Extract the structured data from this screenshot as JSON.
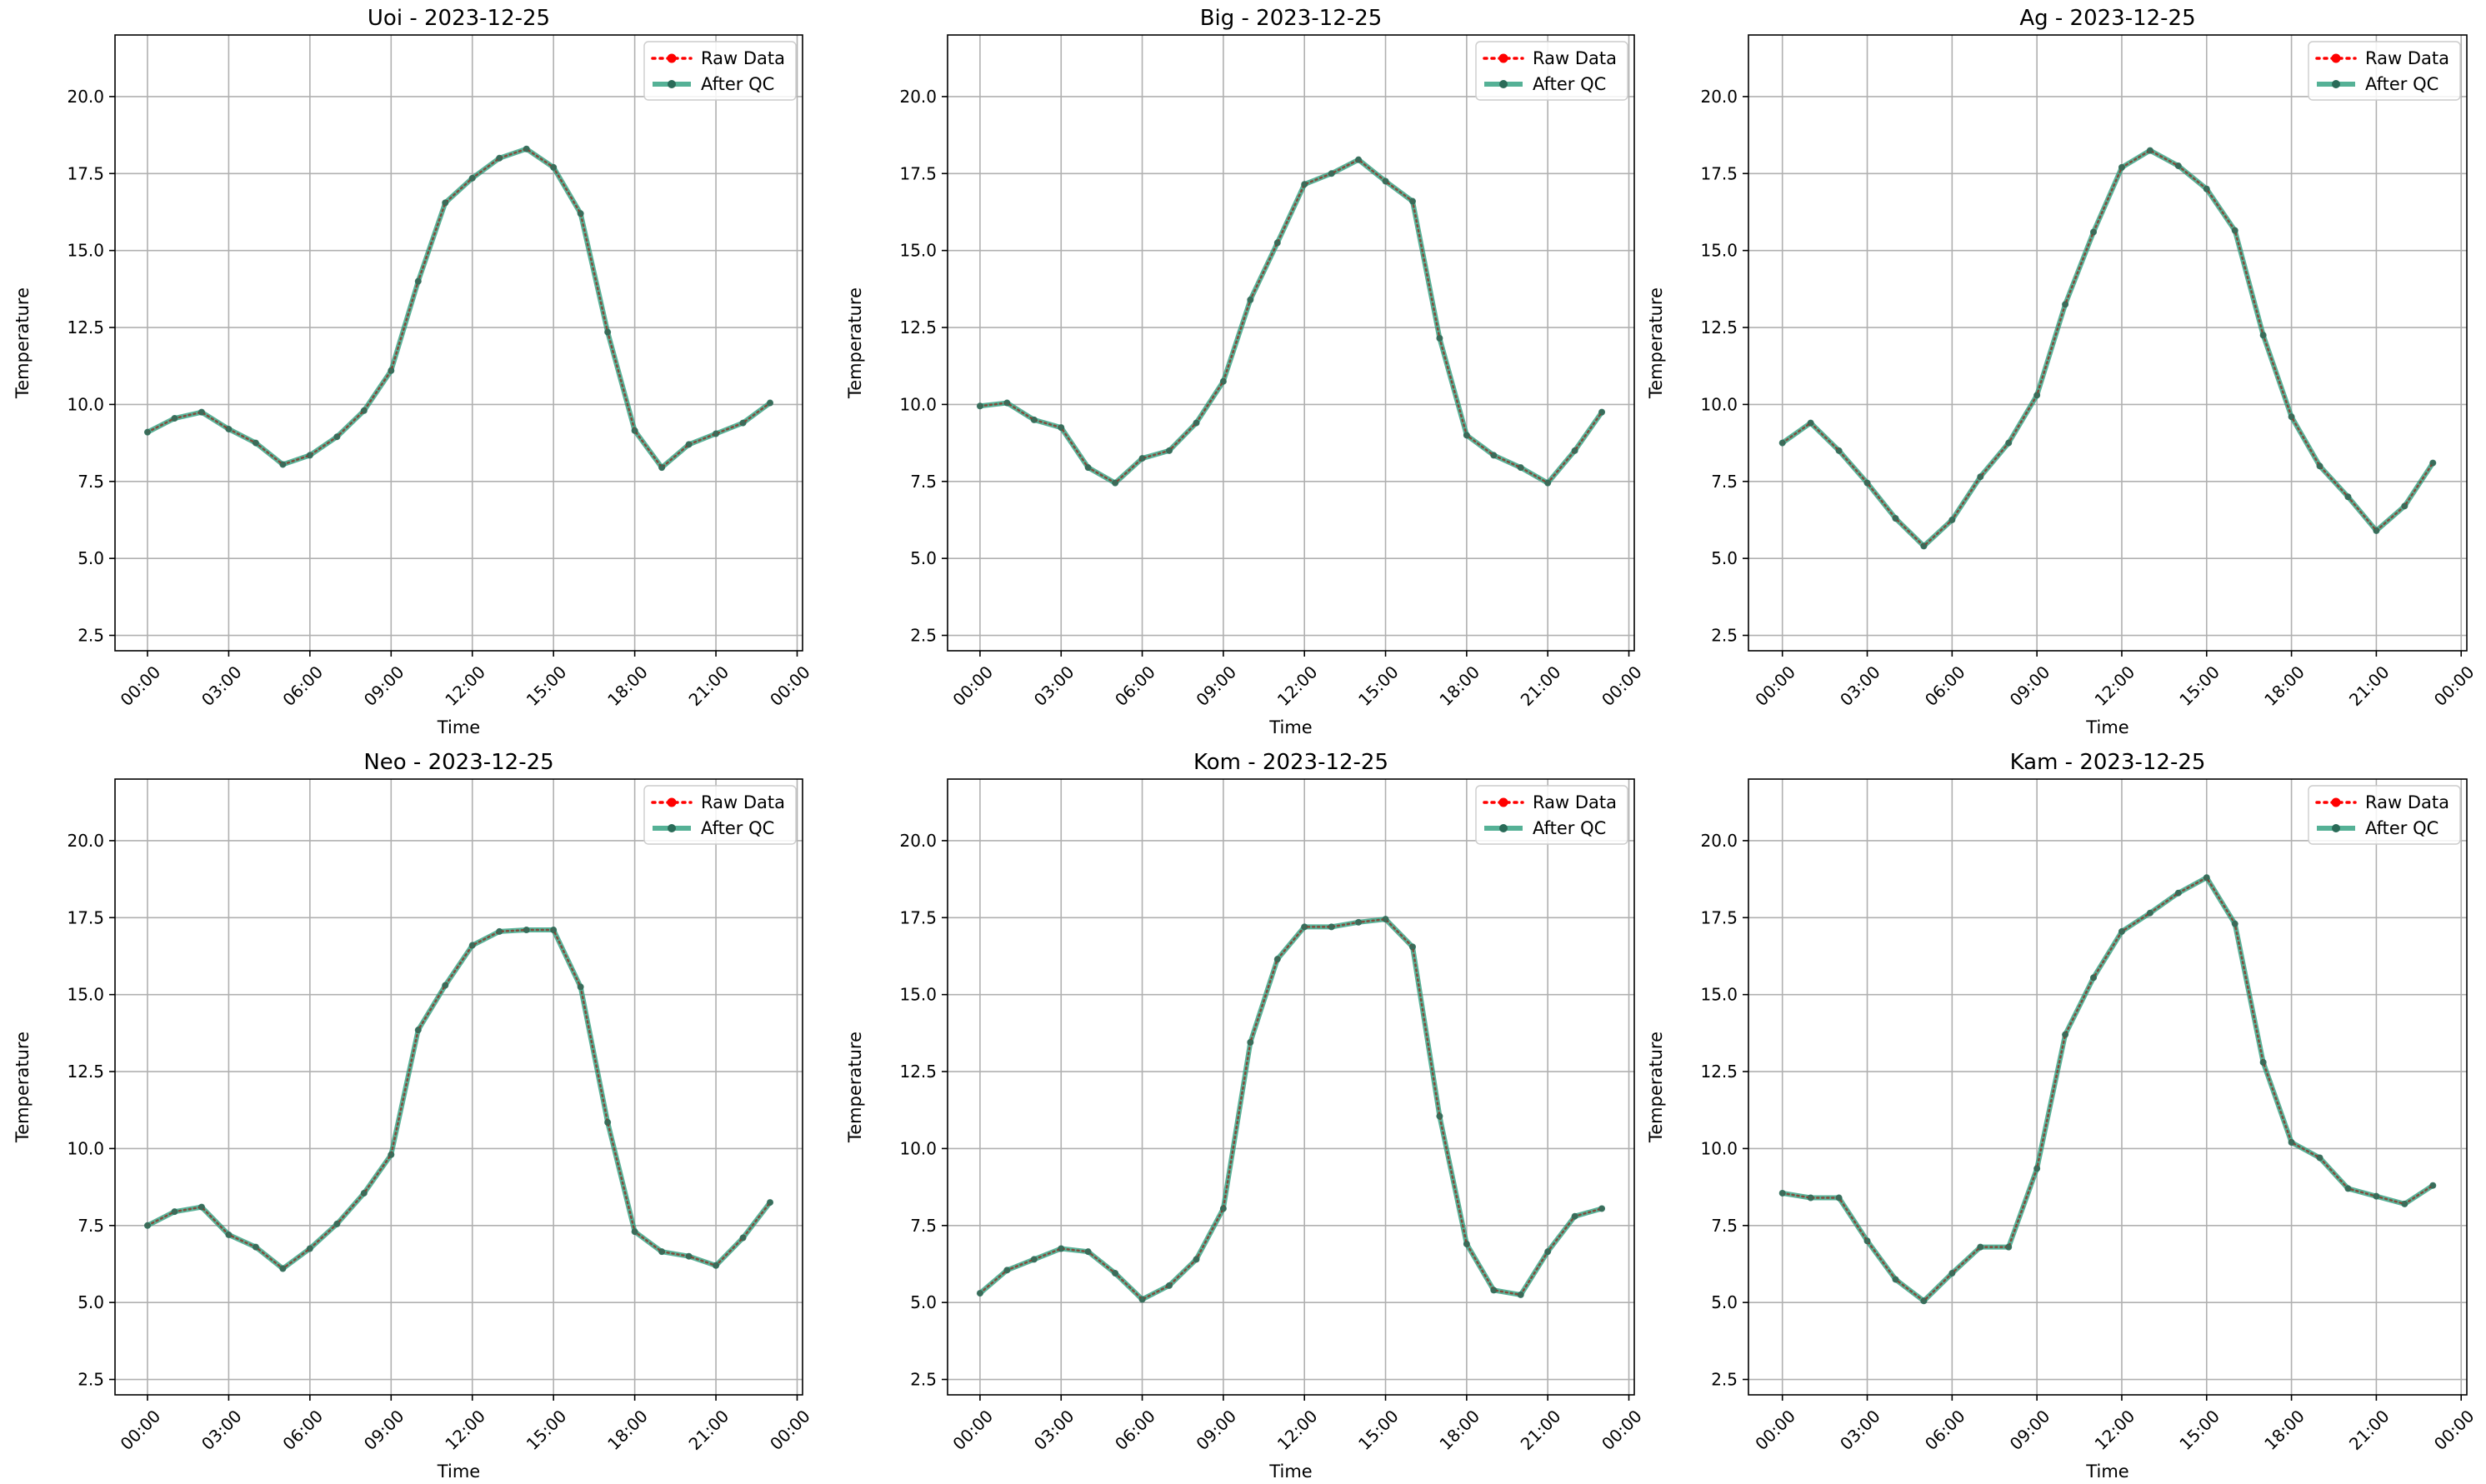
{
  "chart_data": [
    {
      "type": "line",
      "title": "Uoi - 2023-12-25",
      "xlabel": "Time",
      "ylabel": "Temperature",
      "x_ticks": [
        "00:00",
        "03:00",
        "06:00",
        "09:00",
        "12:00",
        "15:00",
        "18:00",
        "21:00",
        "00:00"
      ],
      "y_ticks": [
        "2.5",
        "5.0",
        "7.5",
        "10.0",
        "12.5",
        "15.0",
        "17.5",
        "20.0"
      ],
      "ylim": [
        2.0,
        22.0
      ],
      "xlim_hours": [
        -1.2,
        24.2
      ],
      "grid": true,
      "legend_position": "top-right",
      "series": [
        {
          "name": "Raw Data",
          "color": "#ff0000",
          "style": "dotted",
          "marker": "circle",
          "values": [
            9.1,
            9.55,
            9.75,
            9.2,
            8.75,
            8.05,
            8.35,
            8.95,
            9.8,
            11.1,
            14.0,
            16.55,
            17.35,
            18.0,
            18.3,
            17.7,
            16.2,
            12.35,
            9.15,
            7.95,
            8.7,
            9.05,
            9.4,
            10.05
          ]
        },
        {
          "name": "After QC",
          "color": "#2a9d7c",
          "style": "solid",
          "marker": "circle",
          "values": [
            9.1,
            9.55,
            9.75,
            9.2,
            8.75,
            8.05,
            8.35,
            8.95,
            9.8,
            11.1,
            14.0,
            16.55,
            17.35,
            18.0,
            18.3,
            17.7,
            16.2,
            12.35,
            9.15,
            7.95,
            8.7,
            9.05,
            9.4,
            10.05
          ]
        }
      ]
    },
    {
      "type": "line",
      "title": "Big - 2023-12-25",
      "xlabel": "Time",
      "ylabel": "Temperature",
      "x_ticks": [
        "00:00",
        "03:00",
        "06:00",
        "09:00",
        "12:00",
        "15:00",
        "18:00",
        "21:00",
        "00:00"
      ],
      "y_ticks": [
        "2.5",
        "5.0",
        "7.5",
        "10.0",
        "12.5",
        "15.0",
        "17.5",
        "20.0"
      ],
      "ylim": [
        2.0,
        22.0
      ],
      "xlim_hours": [
        -1.2,
        24.2
      ],
      "grid": true,
      "legend_position": "top-right",
      "series": [
        {
          "name": "Raw Data",
          "color": "#ff0000",
          "style": "dotted",
          "marker": "circle",
          "values": [
            9.95,
            10.05,
            9.5,
            9.25,
            7.95,
            7.45,
            8.25,
            8.5,
            9.4,
            10.75,
            13.4,
            15.25,
            17.15,
            17.5,
            17.95,
            17.25,
            16.6,
            12.15,
            9.0,
            8.35,
            7.95,
            7.45,
            8.5,
            9.75
          ]
        },
        {
          "name": "After QC",
          "color": "#2a9d7c",
          "style": "solid",
          "marker": "circle",
          "values": [
            9.95,
            10.05,
            9.5,
            9.25,
            7.95,
            7.45,
            8.25,
            8.5,
            9.4,
            10.75,
            13.4,
            15.25,
            17.15,
            17.5,
            17.95,
            17.25,
            16.6,
            12.15,
            9.0,
            8.35,
            7.95,
            7.45,
            8.5,
            9.75
          ]
        }
      ]
    },
    {
      "type": "line",
      "title": "Ag - 2023-12-25",
      "xlabel": "Time",
      "ylabel": "Temperature",
      "x_ticks": [
        "00:00",
        "03:00",
        "06:00",
        "09:00",
        "12:00",
        "15:00",
        "18:00",
        "21:00",
        "00:00"
      ],
      "y_ticks": [
        "2.5",
        "5.0",
        "7.5",
        "10.0",
        "12.5",
        "15.0",
        "17.5",
        "20.0"
      ],
      "ylim": [
        2.0,
        22.0
      ],
      "xlim_hours": [
        -1.2,
        24.2
      ],
      "grid": true,
      "legend_position": "top-right",
      "series": [
        {
          "name": "Raw Data",
          "color": "#ff0000",
          "style": "dotted",
          "marker": "circle",
          "values": [
            8.75,
            9.4,
            8.5,
            7.45,
            6.3,
            5.4,
            6.25,
            7.65,
            8.75,
            10.3,
            13.25,
            15.6,
            17.7,
            18.25,
            17.75,
            17.0,
            15.65,
            12.25,
            9.6,
            8.0,
            7.0,
            5.9,
            6.7,
            8.1
          ]
        },
        {
          "name": "After QC",
          "color": "#2a9d7c",
          "style": "solid",
          "marker": "circle",
          "values": [
            8.75,
            9.4,
            8.5,
            7.45,
            6.3,
            5.4,
            6.25,
            7.65,
            8.75,
            10.3,
            13.25,
            15.6,
            17.7,
            18.25,
            17.75,
            17.0,
            15.65,
            12.25,
            9.6,
            8.0,
            7.0,
            5.9,
            6.7,
            8.1
          ]
        }
      ]
    },
    {
      "type": "line",
      "title": "Neo - 2023-12-25",
      "xlabel": "Time",
      "ylabel": "Temperature",
      "x_ticks": [
        "00:00",
        "03:00",
        "06:00",
        "09:00",
        "12:00",
        "15:00",
        "18:00",
        "21:00",
        "00:00"
      ],
      "y_ticks": [
        "2.5",
        "5.0",
        "7.5",
        "10.0",
        "12.5",
        "15.0",
        "17.5",
        "20.0"
      ],
      "ylim": [
        2.0,
        22.0
      ],
      "xlim_hours": [
        -1.2,
        24.2
      ],
      "grid": true,
      "legend_position": "top-right",
      "series": [
        {
          "name": "Raw Data",
          "color": "#ff0000",
          "style": "dotted",
          "marker": "circle",
          "values": [
            7.5,
            7.95,
            8.1,
            7.2,
            6.8,
            6.1,
            6.75,
            7.55,
            8.55,
            9.8,
            13.85,
            15.3,
            16.6,
            17.05,
            17.1,
            17.1,
            15.25,
            10.85,
            7.3,
            6.65,
            6.5,
            6.2,
            7.1,
            8.25
          ]
        },
        {
          "name": "After QC",
          "color": "#2a9d7c",
          "style": "solid",
          "marker": "circle",
          "values": [
            7.5,
            7.95,
            8.1,
            7.2,
            6.8,
            6.1,
            6.75,
            7.55,
            8.55,
            9.8,
            13.85,
            15.3,
            16.6,
            17.05,
            17.1,
            17.1,
            15.25,
            10.85,
            7.3,
            6.65,
            6.5,
            6.2,
            7.1,
            8.25
          ]
        }
      ]
    },
    {
      "type": "line",
      "title": "Kom - 2023-12-25",
      "xlabel": "Time",
      "ylabel": "Temperature",
      "x_ticks": [
        "00:00",
        "03:00",
        "06:00",
        "09:00",
        "12:00",
        "15:00",
        "18:00",
        "21:00",
        "00:00"
      ],
      "y_ticks": [
        "2.5",
        "5.0",
        "7.5",
        "10.0",
        "12.5",
        "15.0",
        "17.5",
        "20.0"
      ],
      "ylim": [
        2.0,
        22.0
      ],
      "xlim_hours": [
        -1.2,
        24.2
      ],
      "grid": true,
      "legend_position": "top-right",
      "series": [
        {
          "name": "Raw Data",
          "color": "#ff0000",
          "style": "dotted",
          "marker": "circle",
          "values": [
            5.3,
            6.05,
            6.4,
            6.75,
            6.65,
            5.95,
            5.1,
            5.55,
            6.4,
            8.05,
            13.45,
            16.15,
            17.2,
            17.2,
            17.35,
            17.45,
            16.55,
            11.05,
            6.9,
            5.4,
            5.25,
            6.65,
            7.8,
            8.05
          ]
        },
        {
          "name": "After QC",
          "color": "#2a9d7c",
          "style": "solid",
          "marker": "circle",
          "values": [
            5.3,
            6.05,
            6.4,
            6.75,
            6.65,
            5.95,
            5.1,
            5.55,
            6.4,
            8.05,
            13.45,
            16.15,
            17.2,
            17.2,
            17.35,
            17.45,
            16.55,
            11.05,
            6.9,
            5.4,
            5.25,
            6.65,
            7.8,
            8.05
          ]
        }
      ]
    },
    {
      "type": "line",
      "title": "Kam - 2023-12-25",
      "xlabel": "Time",
      "ylabel": "Temperature",
      "x_ticks": [
        "00:00",
        "03:00",
        "06:00",
        "09:00",
        "12:00",
        "15:00",
        "18:00",
        "21:00",
        "00:00"
      ],
      "y_ticks": [
        "2.5",
        "5.0",
        "7.5",
        "10.0",
        "12.5",
        "15.0",
        "17.5",
        "20.0"
      ],
      "ylim": [
        2.0,
        22.0
      ],
      "xlim_hours": [
        -1.2,
        24.2
      ],
      "grid": true,
      "legend_position": "top-right",
      "series": [
        {
          "name": "Raw Data",
          "color": "#ff0000",
          "style": "dotted",
          "marker": "circle",
          "values": [
            8.55,
            8.4,
            8.4,
            7.0,
            5.75,
            5.05,
            5.95,
            6.8,
            6.8,
            9.35,
            13.7,
            15.55,
            17.05,
            17.65,
            18.3,
            18.8,
            17.3,
            12.8,
            10.2,
            9.7,
            8.7,
            8.45,
            8.2,
            8.8
          ]
        },
        {
          "name": "After QC",
          "color": "#2a9d7c",
          "style": "solid",
          "marker": "circle",
          "values": [
            8.55,
            8.4,
            8.4,
            7.0,
            5.75,
            5.05,
            5.95,
            6.8,
            6.8,
            9.35,
            13.7,
            15.55,
            17.05,
            17.65,
            18.3,
            18.8,
            17.3,
            12.8,
            10.2,
            9.7,
            8.7,
            8.45,
            8.2,
            8.8
          ]
        }
      ]
    }
  ]
}
